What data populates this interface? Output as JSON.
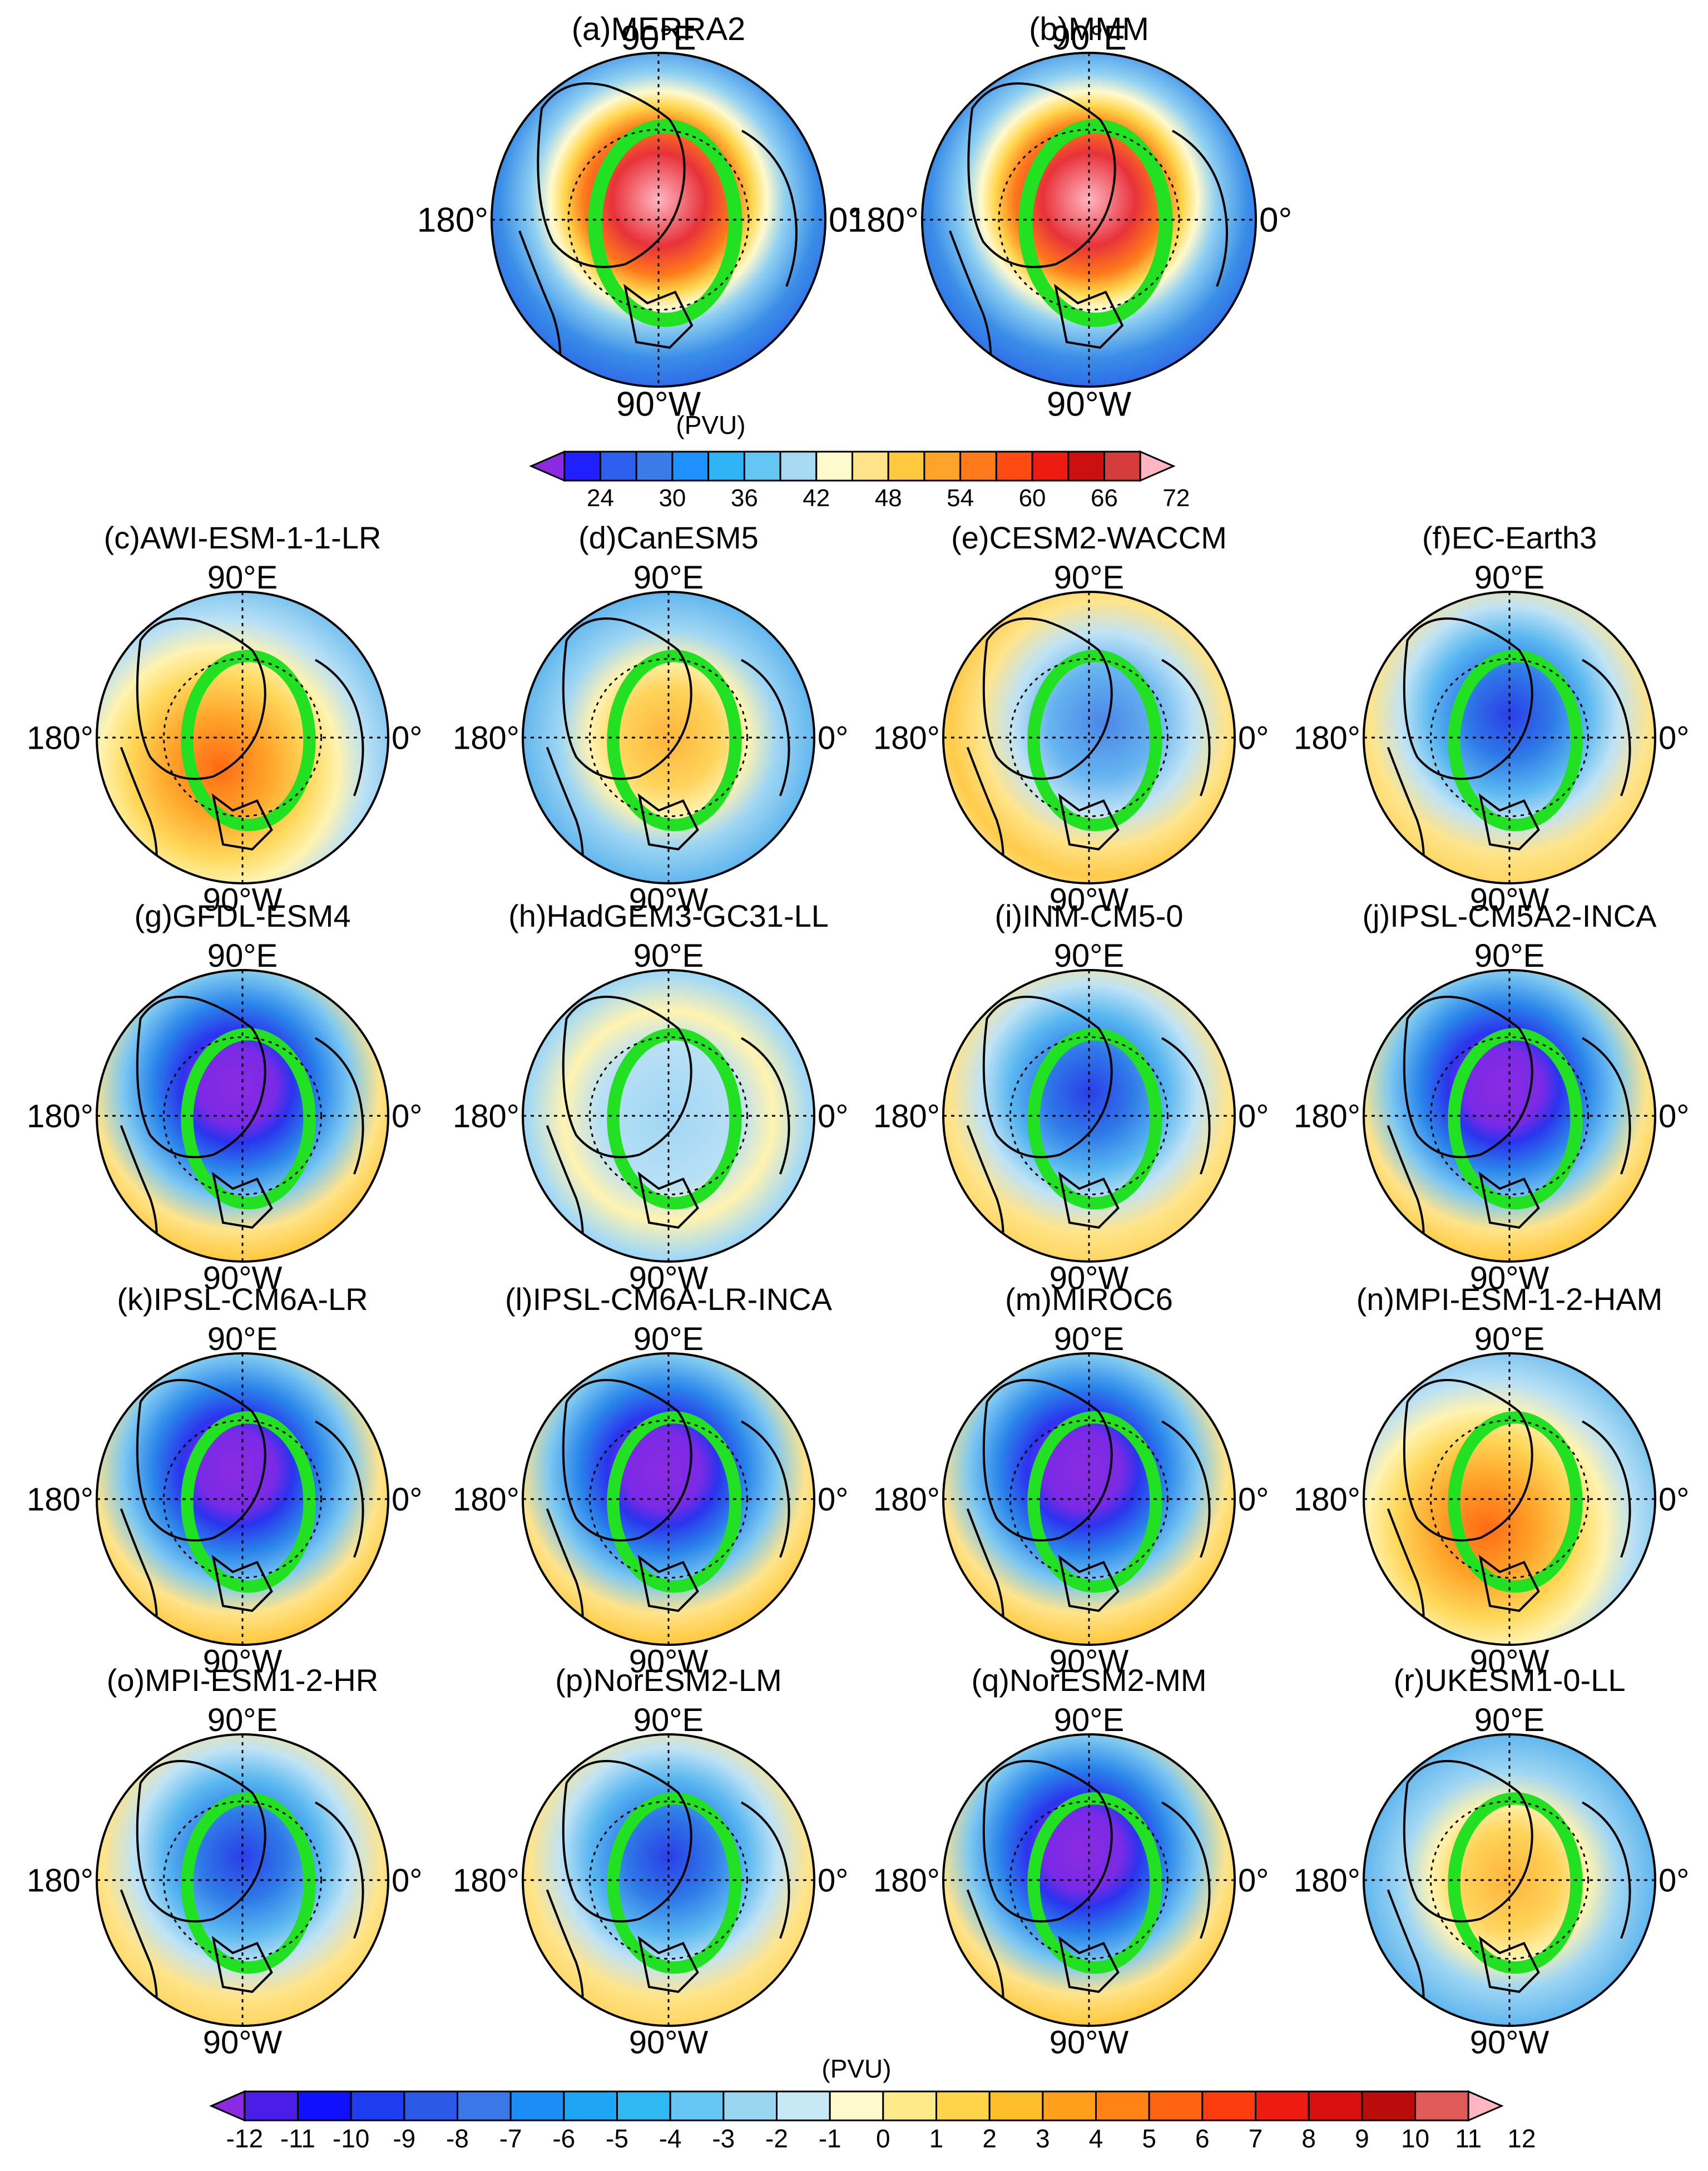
{
  "units_label": "(PVU)",
  "axis_labels": {
    "top": "90°E",
    "bottom": "90°W",
    "left": "180°",
    "right": "0°"
  },
  "maps_top": [
    {
      "id": "a",
      "title": "(a)MERRA2",
      "pattern": "clim"
    },
    {
      "id": "b",
      "title": "(b)MMM",
      "pattern": "clim"
    }
  ],
  "colorbar_top": {
    "ticks": [
      "24",
      "30",
      "36",
      "42",
      "48",
      "54",
      "60",
      "66",
      "72"
    ],
    "colors": [
      "#8a2be2",
      "#2020ff",
      "#2e5ff0",
      "#3a7be8",
      "#1e90ff",
      "#2fb4f5",
      "#66c6f2",
      "#a6daf3",
      "#fffacd",
      "#ffe38a",
      "#ffc83d",
      "#ffa42a",
      "#ff7a1a",
      "#ff4a12",
      "#ee1c10",
      "#cc1010",
      "#d63c3c",
      "#ffb6c1"
    ]
  },
  "maps_diff": [
    {
      "id": "c",
      "title": "(c)AWI-ESM-1-1-LR",
      "pattern": "warm"
    },
    {
      "id": "d",
      "title": "(d)CanESM5",
      "pattern": "warm-core"
    },
    {
      "id": "e",
      "title": "(e)CESM2-WACCM",
      "pattern": "mix"
    },
    {
      "id": "f",
      "title": "(f)EC-Earth3",
      "pattern": "cool"
    },
    {
      "id": "g",
      "title": "(g)GFDL-ESM4",
      "pattern": "strong-cool"
    },
    {
      "id": "h",
      "title": "(h)HadGEM3-GC31-LL",
      "pattern": "light"
    },
    {
      "id": "i",
      "title": "(i)INM-CM5-0",
      "pattern": "cool"
    },
    {
      "id": "j",
      "title": "(j)IPSL-CM5A2-INCA",
      "pattern": "strong-cool"
    },
    {
      "id": "k",
      "title": "(k)IPSL-CM6A-LR",
      "pattern": "strong-cool"
    },
    {
      "id": "l",
      "title": "(l)IPSL-CM6A-LR-INCA",
      "pattern": "strong-cool"
    },
    {
      "id": "m",
      "title": "(m)MIROC6",
      "pattern": "strong-cool"
    },
    {
      "id": "n",
      "title": "(n)MPI-ESM-1-2-HAM",
      "pattern": "warm"
    },
    {
      "id": "o",
      "title": "(o)MPI-ESM1-2-HR",
      "pattern": "cool"
    },
    {
      "id": "p",
      "title": "(p)NorESM2-LM",
      "pattern": "cool"
    },
    {
      "id": "q",
      "title": "(q)NorESM2-MM",
      "pattern": "strong-cool"
    },
    {
      "id": "r",
      "title": "(r)UKESM1-0-LL",
      "pattern": "warm-core"
    }
  ],
  "colorbar_bottom": {
    "ticks": [
      "-12",
      "-11",
      "-10",
      "-9",
      "-8",
      "-7",
      "-6",
      "-5",
      "-4",
      "-3",
      "-2",
      "-1",
      "0",
      "1",
      "2",
      "3",
      "4",
      "5",
      "6",
      "7",
      "8",
      "9",
      "10",
      "11",
      "12"
    ],
    "colors": [
      "#8a2be2",
      "#4b1ee8",
      "#1010ff",
      "#1e3cf0",
      "#2a5ae6",
      "#3a78e8",
      "#1e8cf5",
      "#1ea6f5",
      "#2fb8f2",
      "#66c6f2",
      "#99d6f2",
      "#c6e8f7",
      "#fffacd",
      "#ffea8a",
      "#ffd34a",
      "#ffbe2a",
      "#ffa01a",
      "#ff8214",
      "#ff6410",
      "#ff3c10",
      "#ee1c10",
      "#d81010",
      "#bb0c0c",
      "#e05a5a",
      "#ffb6c1"
    ]
  }
}
